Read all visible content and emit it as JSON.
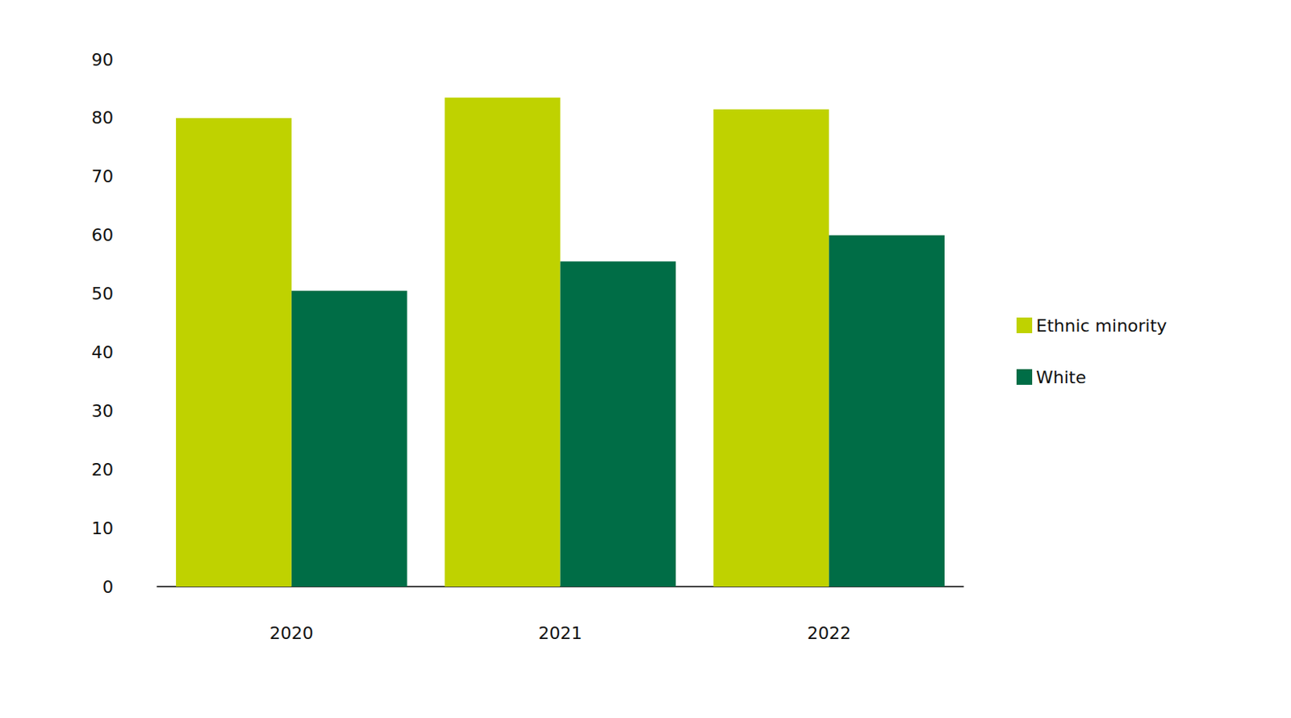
{
  "chart_data": {
    "type": "bar",
    "categories": [
      "2020",
      "2021",
      "2022"
    ],
    "series": [
      {
        "name": "Ethnic minority",
        "color": "#bfd200",
        "values": [
          80,
          83.5,
          81.5
        ]
      },
      {
        "name": "White",
        "color": "#006d46",
        "values": [
          50.5,
          55.5,
          60
        ]
      }
    ],
    "ylim": [
      0,
      90
    ],
    "yticks": [
      0,
      10,
      20,
      30,
      40,
      50,
      60,
      70,
      80,
      90
    ],
    "grid": false,
    "legend": "right"
  }
}
